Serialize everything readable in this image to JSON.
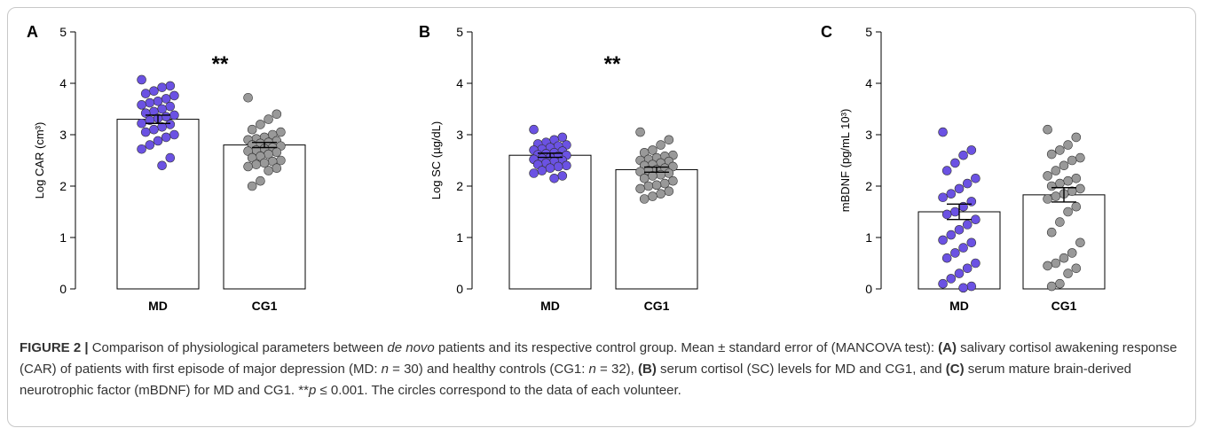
{
  "chart_data": [
    {
      "type": "bar",
      "panel": "A",
      "ylabel": "Log CAR (cm³)",
      "ylim": [
        0,
        5
      ],
      "yticks": [
        0,
        1,
        2,
        3,
        4,
        5
      ],
      "categories": [
        "MD",
        "CG1"
      ],
      "values": [
        3.3,
        2.8
      ],
      "sem": [
        0.08,
        0.05
      ],
      "significance": "**",
      "points": [
        [
          4.07,
          3.95,
          3.92,
          3.85,
          3.8,
          3.76,
          3.7,
          3.65,
          3.62,
          3.58,
          3.55,
          3.5,
          3.45,
          3.42,
          3.38,
          3.35,
          3.32,
          3.28,
          3.22,
          3.2,
          3.15,
          3.1,
          3.05,
          3.0,
          2.95,
          2.88,
          2.8,
          2.72,
          2.55,
          2.4
        ],
        [
          3.72,
          3.4,
          3.3,
          3.2,
          3.1,
          3.05,
          3.0,
          2.95,
          2.92,
          2.9,
          2.88,
          2.85,
          2.83,
          2.8,
          2.78,
          2.75,
          2.73,
          2.7,
          2.68,
          2.66,
          2.62,
          2.58,
          2.55,
          2.5,
          2.48,
          2.45,
          2.42,
          2.38,
          2.35,
          2.3,
          2.1,
          2.0
        ]
      ]
    },
    {
      "type": "bar",
      "panel": "B",
      "ylabel": "Log SC (µg/dL)",
      "ylim": [
        0,
        5
      ],
      "yticks": [
        0,
        1,
        2,
        3,
        4,
        5
      ],
      "categories": [
        "MD",
        "CG1"
      ],
      "values": [
        2.6,
        2.32
      ],
      "sem": [
        0.04,
        0.05
      ],
      "significance": "**",
      "points": [
        [
          3.1,
          2.95,
          2.9,
          2.85,
          2.82,
          2.8,
          2.78,
          2.75,
          2.72,
          2.7,
          2.68,
          2.65,
          2.63,
          2.61,
          2.6,
          2.58,
          2.56,
          2.54,
          2.52,
          2.5,
          2.48,
          2.45,
          2.42,
          2.4,
          2.38,
          2.35,
          2.3,
          2.25,
          2.2,
          2.15
        ],
        [
          3.05,
          2.9,
          2.8,
          2.7,
          2.65,
          2.6,
          2.58,
          2.55,
          2.52,
          2.5,
          2.48,
          2.45,
          2.42,
          2.4,
          2.38,
          2.35,
          2.32,
          2.3,
          2.28,
          2.25,
          2.22,
          2.2,
          2.15,
          2.1,
          2.05,
          2.02,
          2.0,
          1.95,
          1.9,
          1.85,
          1.8,
          1.75
        ]
      ]
    },
    {
      "type": "bar",
      "panel": "C",
      "ylabel": "mBDNF (pg/mL 10³)",
      "ylim": [
        0,
        5
      ],
      "yticks": [
        0,
        1,
        2,
        3,
        4,
        5
      ],
      "categories": [
        "MD",
        "CG1"
      ],
      "values": [
        1.5,
        1.83
      ],
      "sem": [
        0.15,
        0.14
      ],
      "significance": "",
      "points": [
        [
          3.05,
          2.7,
          2.6,
          2.45,
          2.3,
          2.15,
          2.05,
          1.95,
          1.85,
          1.78,
          1.7,
          1.6,
          1.5,
          1.45,
          1.35,
          1.25,
          1.15,
          1.05,
          0.95,
          0.9,
          0.8,
          0.7,
          0.6,
          0.5,
          0.4,
          0.3,
          0.2,
          0.1,
          0.05,
          0.02
        ],
        [
          3.1,
          2.95,
          2.8,
          2.7,
          2.62,
          2.55,
          2.5,
          2.4,
          2.3,
          2.2,
          2.15,
          2.1,
          2.05,
          2.0,
          1.95,
          1.9,
          1.85,
          1.8,
          1.75,
          1.6,
          1.5,
          1.3,
          1.1,
          0.9,
          0.7,
          0.6,
          0.5,
          0.45,
          0.4,
          0.3,
          0.1,
          0.05
        ]
      ]
    }
  ],
  "colors": {
    "md": "#6b52e3",
    "cg1": "#999999",
    "bar_fill": "#ffffff",
    "axis": "#000000"
  },
  "caption": {
    "label": "FIGURE 2 |",
    "p1": " Comparison of physiological parameters between ",
    "italic1": "de novo",
    "p2": " patients and its respective control group. Mean ± standard error of (MANCOVA test): ",
    "a": "(A)",
    "p3": " salivary cortisol awakening response (CAR) of patients with first episode of major depression (MD: ",
    "n1": "n",
    "p4": " = 30) and healthy controls (CG1: ",
    "n2": "n",
    "p5": " = 32), ",
    "b": "(B)",
    "p6": " serum cortisol (SC) levels for MD and CG1, and ",
    "c": "(C)",
    "p7": " serum mature brain-derived neurotrophic factor (mBDNF) for MD and CG1. **",
    "pvar": "p",
    "p8": " ≤ 0.001. The circles correspond to the data of each volunteer."
  }
}
